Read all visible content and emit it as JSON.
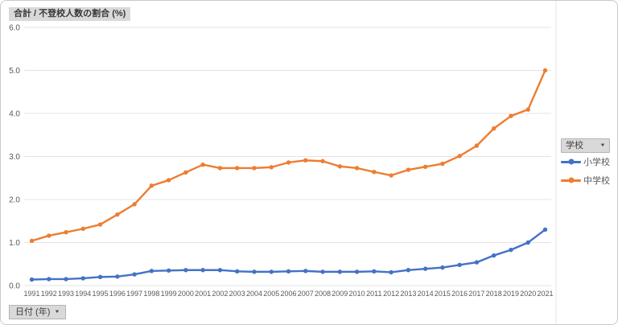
{
  "window": {
    "background": "#FFFFFF",
    "border_color": "#C9C9C9"
  },
  "header": {
    "title": "合計 / 不登校人数の割合 (%)"
  },
  "controls": {
    "legend_field": {
      "label": "学校",
      "dropdown_icon": "▼"
    },
    "axis_field": {
      "label": "日付 (年)",
      "dropdown_icon": "▼"
    }
  },
  "chart_data": {
    "type": "line",
    "title": "合計 / 不登校人数の割合 (%)",
    "xlabel": "日付 (年)",
    "ylabel": "不登校人数の割合 (%)",
    "ylim": [
      0,
      6
    ],
    "yticks": [
      0,
      1,
      2,
      3,
      4,
      5,
      6
    ],
    "ytick_decimals": 1,
    "grid": "horizontal",
    "legend_position": "right",
    "x": [
      1991,
      1992,
      1993,
      1994,
      1995,
      1996,
      1997,
      1998,
      1999,
      2000,
      2001,
      2002,
      2003,
      2004,
      2005,
      2006,
      2007,
      2008,
      2009,
      2010,
      2011,
      2012,
      2013,
      2014,
      2015,
      2016,
      2017,
      2018,
      2019,
      2020,
      2021
    ],
    "series": [
      {
        "name": "小学校",
        "color": "#4472C4",
        "values": [
          0.14,
          0.15,
          0.15,
          0.17,
          0.2,
          0.21,
          0.26,
          0.34,
          0.35,
          0.36,
          0.36,
          0.36,
          0.33,
          0.32,
          0.32,
          0.33,
          0.34,
          0.32,
          0.32,
          0.32,
          0.33,
          0.31,
          0.36,
          0.39,
          0.42,
          0.48,
          0.54,
          0.7,
          0.83,
          1.0,
          1.3
        ]
      },
      {
        "name": "中学校",
        "color": "#ED7D31",
        "values": [
          1.04,
          1.16,
          1.24,
          1.32,
          1.42,
          1.65,
          1.89,
          2.32,
          2.45,
          2.63,
          2.81,
          2.73,
          2.73,
          2.73,
          2.75,
          2.86,
          2.91,
          2.89,
          2.77,
          2.73,
          2.64,
          2.56,
          2.69,
          2.76,
          2.83,
          3.01,
          3.25,
          3.65,
          3.94,
          4.09,
          5.0
        ]
      }
    ],
    "colors": {
      "grid": "#e3e3e3",
      "axis_text": "#595959",
      "pane_divider": "#e6e6e6"
    }
  }
}
